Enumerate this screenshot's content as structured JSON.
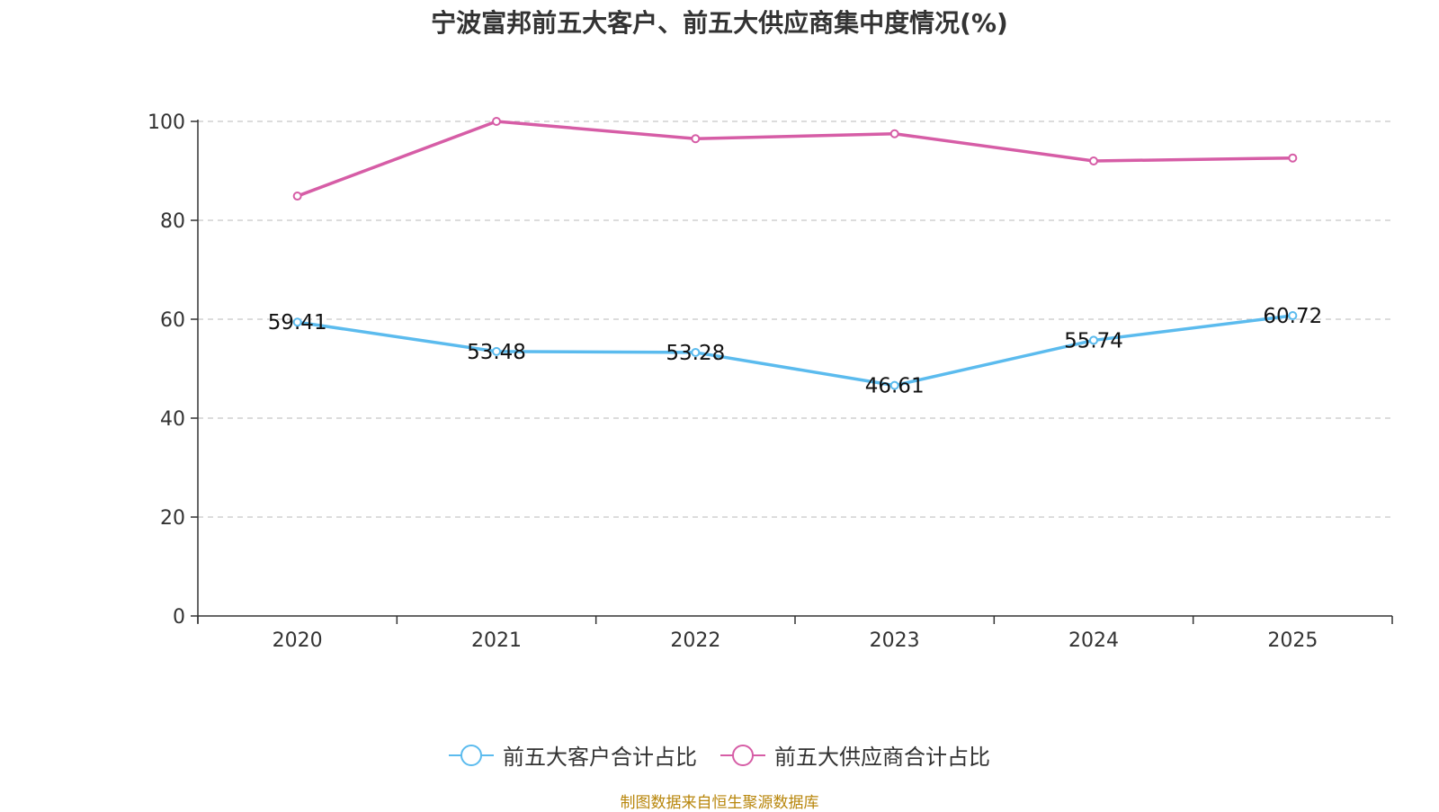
{
  "chart_data": {
    "type": "line",
    "title": "宁波富邦前五大客户、前五大供应商集中度情况(%)",
    "categories": [
      "2020",
      "2021",
      "2022",
      "2023",
      "2024",
      "2025"
    ],
    "yticks": [
      "0",
      "20",
      "40",
      "60",
      "80",
      "100"
    ],
    "ylim": [
      0,
      100
    ],
    "grid": true,
    "xlabel": "",
    "ylabel": "",
    "series": [
      {
        "name": "前五大客户合计占比",
        "color": "#5bbbee",
        "values": [
          59.41,
          53.48,
          53.28,
          46.61,
          55.74,
          60.72
        ],
        "labels": [
          "59.41",
          "53.48",
          "53.28",
          "46.61",
          "55.74",
          "60.72"
        ],
        "show_labels": true
      },
      {
        "name": "前五大供应商合计占比",
        "color": "#d65da6",
        "values": [
          84.9,
          100.0,
          96.5,
          97.5,
          92.0,
          92.6
        ],
        "show_labels": false
      }
    ],
    "legend_position": "bottom-center",
    "source": "制图数据来自恒生聚源数据库"
  }
}
